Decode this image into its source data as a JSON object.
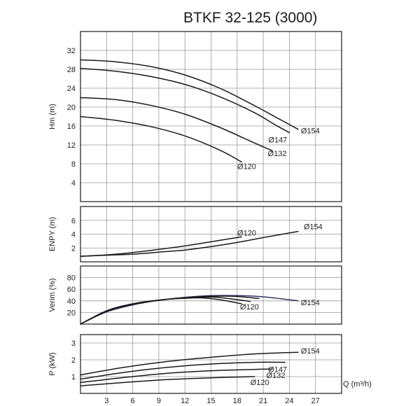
{
  "title": "BTKF 32-125 (3000)",
  "chart_data": {
    "type": "line",
    "title": "BTKF 32-125 (3000)",
    "x_axis": {
      "label": "Q (m³/h)",
      "ticks": [
        3,
        6,
        9,
        12,
        15,
        18,
        21,
        24,
        27
      ],
      "range": [
        0,
        30
      ]
    },
    "panels": [
      {
        "id": "head",
        "ylabel": "Hm (m)",
        "ylim": [
          0,
          36
        ],
        "yticks": [
          4,
          8,
          12,
          16,
          20,
          24,
          28,
          32
        ],
        "series": [
          {
            "name": "Ø154",
            "label": "Ø154",
            "x": [
              0,
              4,
              8,
              12,
              16,
              20,
              23,
              25
            ],
            "y": [
              30,
              29.6,
              28.6,
              26.8,
              24,
              20.3,
              17.3,
              15.3
            ]
          },
          {
            "name": "Ø147",
            "label": "Ø147",
            "x": [
              0,
              4,
              8,
              12,
              16,
              20,
              22.5,
              24
            ],
            "y": [
              28.2,
              27.6,
              26.5,
              24.8,
              22.2,
              18.8,
              16.1,
              14.6
            ]
          },
          {
            "name": "Ø132",
            "label": "Ø132",
            "x": [
              0,
              4,
              8,
              12,
              16,
              20,
              22
            ],
            "y": [
              22,
              21.6,
              20.4,
              18.5,
              15.7,
              12.4,
              10.8
            ]
          },
          {
            "name": "Ø120",
            "label": "Ø120",
            "x": [
              0,
              4,
              8,
              12,
              16,
              18.5
            ],
            "y": [
              18,
              17.2,
              15.9,
              13.9,
              10.9,
              8.4
            ]
          }
        ]
      },
      {
        "id": "npsh",
        "ylabel": "ENPY (m)",
        "ylim": [
          0,
          8
        ],
        "yticks": [
          2,
          4,
          6
        ],
        "series": [
          {
            "name": "Ø154",
            "label": "Ø154",
            "x": [
              0,
              3,
              6,
              9,
              12,
              15,
              18,
              21,
              25
            ],
            "y": [
              0.8,
              0.95,
              1.1,
              1.4,
              1.7,
              2.2,
              2.8,
              3.5,
              4.4
            ]
          },
          {
            "name": "Ø120",
            "label": "Ø120",
            "x": [
              0,
              3,
              6,
              9,
              12,
              15,
              18.5
            ],
            "y": [
              0.8,
              1.0,
              1.35,
              1.8,
              2.3,
              2.9,
              3.6
            ]
          }
        ]
      },
      {
        "id": "efficiency",
        "ylabel": "Verim (%)",
        "ylim": [
          0,
          100
        ],
        "yticks": [
          20,
          40,
          60,
          80
        ],
        "series": [
          {
            "name": "Ø154",
            "label": "Ø154",
            "x": [
              0,
              3,
              6,
              9,
              12,
              15,
              18,
              21,
              25
            ],
            "y": [
              0,
              21,
              33,
              41,
              46,
              49,
              49,
              47,
              40
            ]
          },
          {
            "name": "Ø147",
            "label": "",
            "x": [
              0,
              3,
              6,
              9,
              12,
              15,
              18,
              20.5
            ],
            "y": [
              0,
              22,
              34,
              41,
              45.5,
              48,
              47.5,
              44
            ]
          },
          {
            "name": "Ø132",
            "label": "",
            "x": [
              0,
              3,
              6,
              9,
              12,
              15,
              17,
              19.5
            ],
            "y": [
              0,
              22,
              34,
              41,
              45,
              46.5,
              44,
              39
            ]
          },
          {
            "name": "Ø120",
            "label": "Ø120",
            "x": [
              0,
              3,
              6,
              9,
              12,
              14,
              16,
              18.5
            ],
            "y": [
              0,
              23,
              35,
              41.5,
              44.5,
              45,
              42,
              35
            ]
          }
        ]
      },
      {
        "id": "power",
        "ylabel": "P (kW)",
        "ylim": [
          0,
          3.5
        ],
        "yticks": [
          1,
          2,
          3
        ],
        "series": [
          {
            "name": "Ø154",
            "label": "Ø154",
            "x": [
              0,
              5,
              10,
              15,
              20,
              25
            ],
            "y": [
              1.1,
              1.55,
              1.9,
              2.15,
              2.35,
              2.45
            ]
          },
          {
            "name": "Ø147",
            "label": "Ø147",
            "x": [
              0,
              5,
              10,
              15,
              20,
              23.5
            ],
            "y": [
              0.85,
              1.25,
              1.55,
              1.75,
              1.85,
              1.85
            ]
          },
          {
            "name": "Ø132",
            "label": "Ø132",
            "x": [
              0,
              5,
              10,
              15,
              20,
              22
            ],
            "y": [
              0.65,
              0.95,
              1.2,
              1.35,
              1.43,
              1.45
            ]
          },
          {
            "name": "Ø120",
            "label": "Ø120",
            "x": [
              0,
              5,
              10,
              15,
              20
            ],
            "y": [
              0.45,
              0.65,
              0.82,
              0.93,
              1.0
            ]
          }
        ]
      }
    ]
  }
}
